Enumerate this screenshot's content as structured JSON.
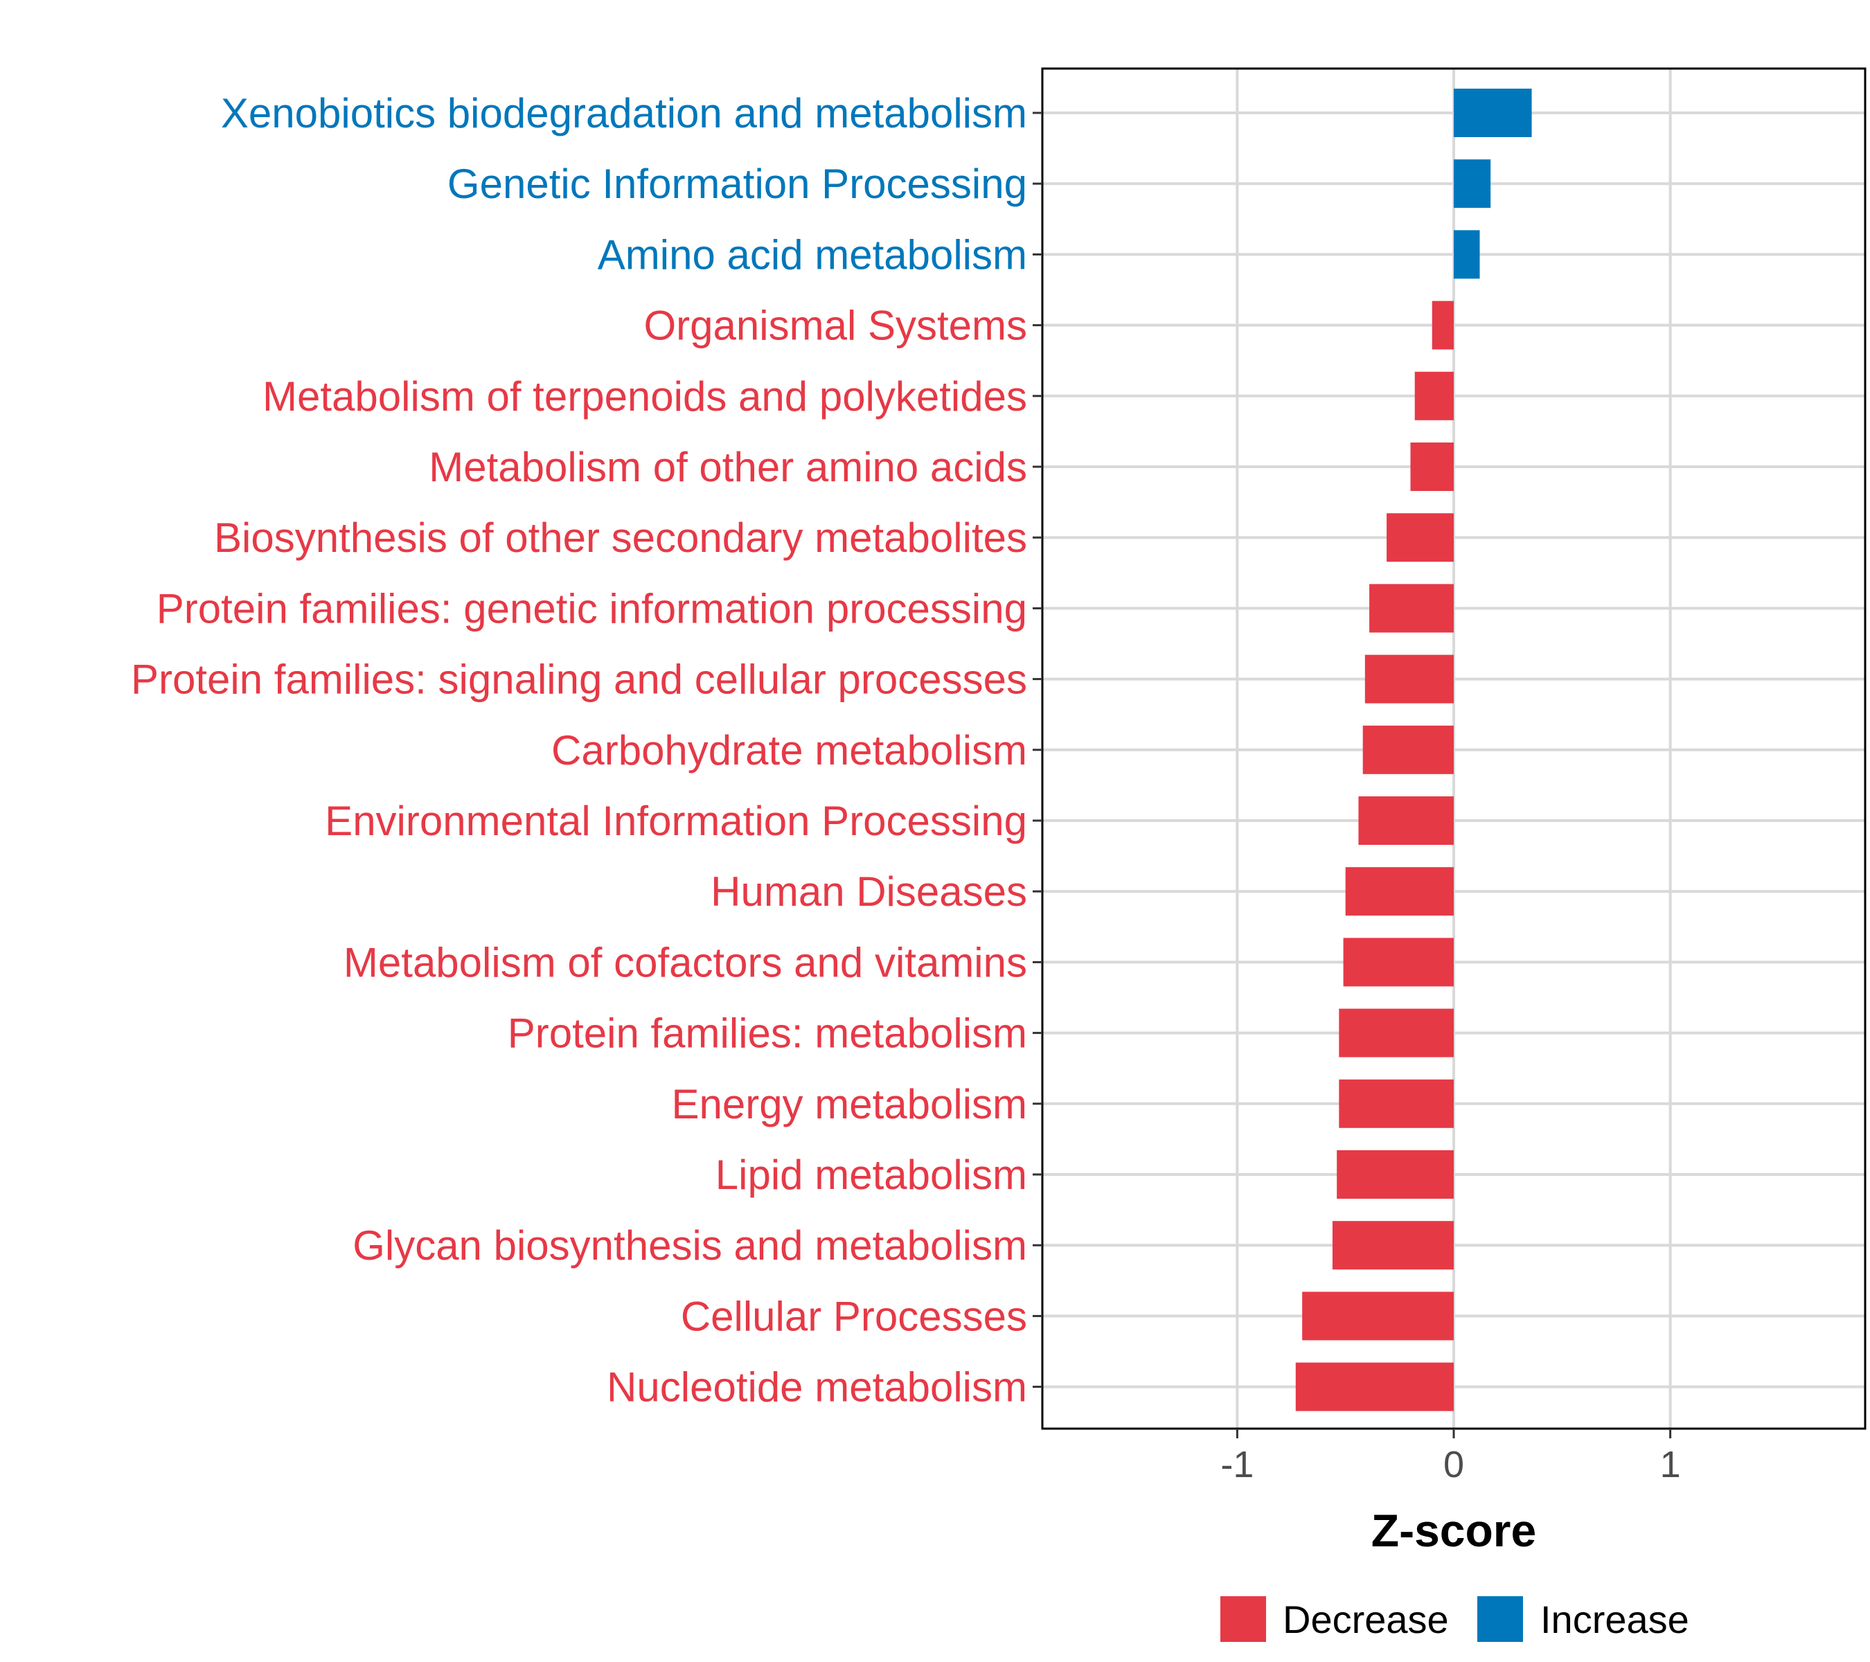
{
  "colors": {
    "decrease": "#E63946",
    "increase": "#0077BB",
    "grid": "#D9D9D9",
    "axis": "#000000"
  },
  "chart_data": {
    "type": "bar",
    "orientation": "horizontal",
    "title": "",
    "xlabel": "Z-score",
    "ylabel": "",
    "xlim": [
      -1.9,
      1.9
    ],
    "xticks": [
      -1,
      0,
      1
    ],
    "xtick_labels": [
      "-1",
      "0",
      "1"
    ],
    "grid": true,
    "legend_position": "bottom",
    "legend": [
      {
        "key": "decrease",
        "label": "Decrease"
      },
      {
        "key": "increase",
        "label": "Increase"
      }
    ],
    "categories": [
      "Xenobiotics biodegradation and metabolism",
      "Genetic Information Processing",
      "Amino acid metabolism",
      "Organismal Systems",
      "Metabolism of terpenoids and polyketides",
      "Metabolism of other amino acids",
      "Biosynthesis of other secondary metabolites",
      "Protein families: genetic information processing",
      "Protein families: signaling and cellular processes",
      "Carbohydrate metabolism",
      "Environmental Information Processing",
      "Human Diseases",
      "Metabolism of cofactors and vitamins",
      "Protein families: metabolism",
      "Energy metabolism",
      "Lipid metabolism",
      "Glycan biosynthesis and metabolism",
      "Cellular Processes",
      "Nucleotide metabolism"
    ],
    "values": [
      0.36,
      0.17,
      0.12,
      -0.1,
      -0.18,
      -0.2,
      -0.31,
      -0.39,
      -0.41,
      -0.42,
      -0.44,
      -0.5,
      -0.51,
      -0.53,
      -0.53,
      -0.54,
      -0.56,
      -0.7,
      -0.73
    ],
    "groups": [
      "increase",
      "increase",
      "increase",
      "decrease",
      "decrease",
      "decrease",
      "decrease",
      "decrease",
      "decrease",
      "decrease",
      "decrease",
      "decrease",
      "decrease",
      "decrease",
      "decrease",
      "decrease",
      "decrease",
      "decrease",
      "decrease"
    ]
  }
}
